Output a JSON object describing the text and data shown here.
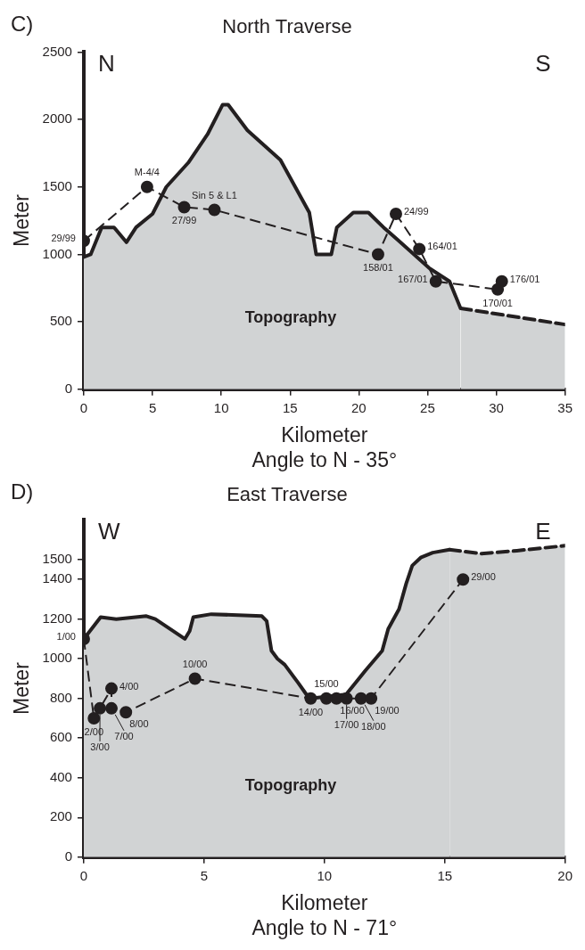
{
  "chart_data": [
    {
      "type": "area",
      "title": "North Traverse",
      "xlabel": "Kilometer\nAngle to N - 35°",
      "ylabel": "Meter",
      "xlim": [
        0,
        35
      ],
      "xticks": [
        0,
        5,
        10,
        15,
        20,
        25,
        30,
        35
      ],
      "ylim": [
        0,
        2500
      ],
      "yticks": [
        0,
        500,
        1000,
        1500,
        2000,
        2500
      ],
      "grid": false,
      "legend": false,
      "series": [
        {
          "type": "area",
          "color": "#d1d3d4",
          "line_style": "solid",
          "x": [
            0,
            0.5,
            1.3,
            2.2,
            3.1,
            3.8,
            5.0,
            6.0,
            7.6,
            9.0,
            10.1,
            10.5,
            11.9,
            14.3,
            16.4,
            16.9,
            18.0,
            18.4,
            19.6,
            20.7,
            21.8,
            22.8,
            25.1,
            26.6,
            27.4
          ],
          "values": [
            980,
            1000,
            1200,
            1200,
            1090,
            1200,
            1300,
            1500,
            1680,
            1890,
            2110,
            2110,
            1920,
            1700,
            1310,
            1000,
            1000,
            1200,
            1310,
            1310,
            1200,
            1110,
            900,
            800,
            600
          ]
        },
        {
          "type": "area",
          "color": "#d1d3d4",
          "line_style": "dashed",
          "x": [
            27.4,
            35
          ],
          "values": [
            600,
            480
          ]
        },
        {
          "type": "line",
          "color": "#231f20",
          "line_style": "dashed",
          "marker": "circle",
          "x": [
            0,
            4.6,
            7.3,
            9.5,
            21.4,
            22.7,
            24.4,
            25.6,
            30.1,
            30.4
          ],
          "values": [
            1100,
            1500,
            1350,
            1330,
            1000,
            1300,
            1040,
            800,
            740,
            800
          ]
        }
      ],
      "annotations": [
        "C)",
        "N",
        "S",
        "Topography",
        {
          "text": "29/99",
          "x": 0,
          "y": 1100
        },
        {
          "text": "M-4/4",
          "x": 4.6,
          "y": 1500
        },
        {
          "text": "27/99",
          "x": 7.3,
          "y": 1350
        },
        {
          "text": "Sin 5 & L1",
          "x": 9.5,
          "y": 1330
        },
        {
          "text": "158/01",
          "x": 21.4,
          "y": 1000
        },
        {
          "text": "24/99",
          "x": 22.7,
          "y": 1300
        },
        {
          "text": "164/01",
          "x": 24.4,
          "y": 1040
        },
        {
          "text": "167/01",
          "x": 25.6,
          "y": 800
        },
        {
          "text": "170/01",
          "x": 30.1,
          "y": 740
        },
        {
          "text": "176/01",
          "x": 30.4,
          "y": 800
        }
      ]
    },
    {
      "type": "area",
      "title": "East Traverse",
      "xlabel": "Kilometer\nAngle to N - 71°",
      "ylabel": "Meter",
      "xlim": [
        0,
        20
      ],
      "xticks": [
        0,
        5,
        10,
        15,
        20
      ],
      "ylim": [
        0,
        1700
      ],
      "yticks": [
        0,
        200,
        400,
        600,
        800,
        1000,
        1200,
        1400,
        1500
      ],
      "grid": false,
      "legend": false,
      "series": [
        {
          "type": "area",
          "color": "#d1d3d4",
          "line_style": "solid",
          "x": [
            0,
            0.7,
            1.35,
            2.6,
            2.97,
            4.2,
            4.4,
            4.55,
            5.3,
            7.4,
            7.6,
            7.8,
            8.05,
            8.35,
            8.9,
            9.25,
            9.4,
            10.9,
            11.7,
            12.4,
            12.65,
            13.1,
            13.4,
            13.65,
            14.0,
            14.5,
            15.2
          ],
          "values": [
            1100,
            1210,
            1200,
            1215,
            1200,
            1100,
            1140,
            1210,
            1225,
            1215,
            1190,
            1040,
            1000,
            970,
            880,
            820,
            800,
            820,
            940,
            1040,
            1150,
            1250,
            1380,
            1470,
            1510,
            1535,
            1550
          ]
        },
        {
          "type": "area",
          "color": "#d1d3d4",
          "line_style": "dashed",
          "x": [
            15.2,
            16.5,
            18,
            20
          ],
          "values": [
            1550,
            1530,
            1545,
            1570
          ]
        },
        {
          "type": "line",
          "color": "#231f20",
          "line_style": "dashed",
          "marker": "circle",
          "x": [
            0,
            0.42,
            0.67,
            1.15,
            1.15,
            1.75,
            4.62,
            9.43,
            10.08,
            10.5,
            10.92,
            11.52,
            11.94,
            15.76
          ],
          "values": [
            1100,
            700,
            750,
            850,
            750,
            730,
            900,
            800,
            800,
            800,
            800,
            800,
            800,
            1400
          ]
        }
      ],
      "annotations": [
        "D)",
        "W",
        "E",
        "Topography",
        {
          "text": "1/00",
          "x": 0,
          "y": 1100
        },
        {
          "text": "2/00",
          "x": 0.42,
          "y": 700
        },
        {
          "text": "3/00",
          "x": 0.67,
          "y": 750
        },
        {
          "text": "4/00",
          "x": 1.15,
          "y": 850
        },
        {
          "text": "7/00",
          "x": 1.15,
          "y": 750
        },
        {
          "text": "8/00",
          "x": 1.75,
          "y": 730
        },
        {
          "text": "10/00",
          "x": 4.62,
          "y": 900
        },
        {
          "text": "14/00",
          "x": 9.43,
          "y": 800
        },
        {
          "text": "15/00",
          "x": 10.08,
          "y": 800
        },
        {
          "text": "16/00",
          "x": 10.5,
          "y": 800
        },
        {
          "text": "17/00",
          "x": 10.92,
          "y": 800
        },
        {
          "text": "18/00",
          "x": 11.52,
          "y": 800
        },
        {
          "text": "19/00",
          "x": 11.94,
          "y": 800
        },
        {
          "text": "29/00",
          "x": 15.76,
          "y": 1400
        }
      ]
    }
  ]
}
